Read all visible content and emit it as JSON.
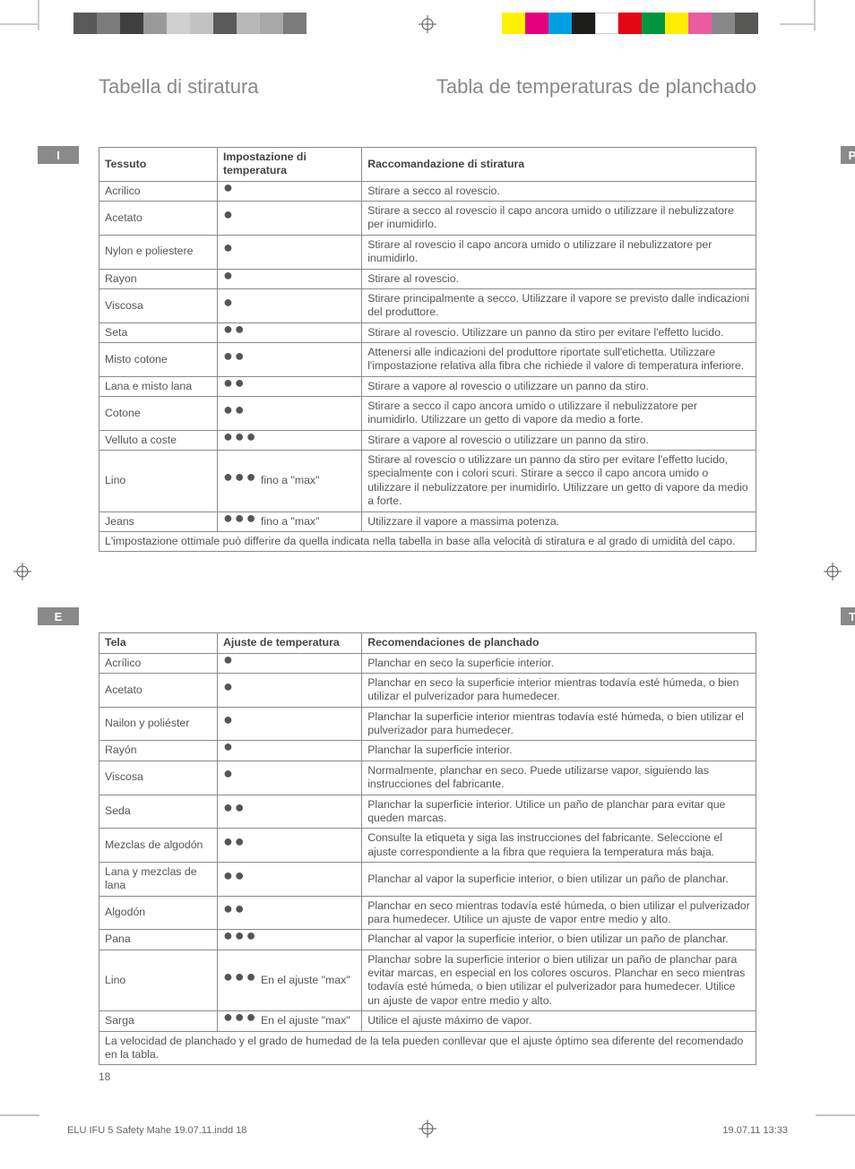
{
  "colorbars": {
    "left_colors": [
      "#595959",
      "#7b7b7b",
      "#3f3f3f",
      "#9a9a9a",
      "#d0d0d0",
      "#c2c2c2",
      "#595959",
      "#b8b8b8",
      "#a8a8a8",
      "#7b7b7b"
    ],
    "right_colors": [
      "#fff200",
      "#e5007e",
      "#009fe3",
      "#1d1d1b",
      "#ffffff",
      "#e30613",
      "#009640",
      "#ffed00",
      "#eb5ba2",
      "#878787",
      "#575756"
    ]
  },
  "titles": {
    "left": "Tabella di stiratura",
    "right": "Tabla de temperaturas de planchado"
  },
  "lang_tabs": {
    "it": "I",
    "es": "E"
  },
  "edge_tabs": {
    "top": "P",
    "bottom": "T"
  },
  "table_it": {
    "headers": [
      "Tessuto",
      "Impostazione di temperatura",
      "Raccomandazione di stiratura"
    ],
    "rows": [
      {
        "fabric": "Acrilico",
        "dots": 1,
        "suffix": "",
        "rec": "Stirare a secco al rovescio."
      },
      {
        "fabric": "Acetato",
        "dots": 1,
        "suffix": "",
        "rec": "Stirare a secco al rovescio il capo ancora umido o utilizzare il nebulizzatore per inumidirlo."
      },
      {
        "fabric": "Nylon e poliestere",
        "dots": 1,
        "suffix": "",
        "rec": "Stirare al rovescio il capo ancora umido o utilizzare il nebulizzatore per inumidirlo."
      },
      {
        "fabric": "Rayon",
        "dots": 1,
        "suffix": "",
        "rec": "Stirare al rovescio."
      },
      {
        "fabric": "Viscosa",
        "dots": 1,
        "suffix": "",
        "rec": "Stirare principalmente a secco. Utilizzare il vapore se previsto dalle indicazioni del produttore."
      },
      {
        "fabric": "Seta",
        "dots": 2,
        "suffix": "",
        "rec": "Stirare al rovescio. Utilizzare un panno da stiro per evitare l'effetto lucido."
      },
      {
        "fabric": "Misto cotone",
        "dots": 2,
        "suffix": "",
        "rec": "Attenersi alle indicazioni del produttore riportate sull'etichetta. Utilizzare l'impostazione relativa alla fibra che richiede il valore di temperatura inferiore."
      },
      {
        "fabric": "Lana e misto lana",
        "dots": 2,
        "suffix": "",
        "rec": "Stirare a vapore al rovescio o utilizzare un panno da stiro."
      },
      {
        "fabric": "Cotone",
        "dots": 2,
        "suffix": "",
        "rec": "Stirare a secco il capo ancora umido o utilizzare il nebulizzatore per inumidirlo. Utilizzare un getto di vapore da medio a forte."
      },
      {
        "fabric": "Velluto a coste",
        "dots": 3,
        "suffix": "",
        "rec": "Stirare a vapore al rovescio o utilizzare un panno da stiro."
      },
      {
        "fabric": "Lino",
        "dots": 3,
        "suffix": " fino a \"max\"",
        "rec": "Stirare al rovescio o utilizzare un panno da stiro per evitare l'effetto lucido, specialmente con i colori scuri. Stirare a secco il capo ancora umido o utilizzare il nebulizzatore per inumidirlo. Utilizzare un getto di vapore da medio a forte."
      },
      {
        "fabric": "Jeans",
        "dots": 3,
        "suffix": " fino a \"max\"",
        "rec": "Utilizzare il vapore a massima potenza."
      }
    ],
    "footer": "L'impostazione ottimale può differire da quella indicata nella tabella in base alla velocità di stiratura e al grado di umidità del capo."
  },
  "table_es": {
    "headers": [
      "Tela",
      "Ajuste de temperatura",
      "Recomendaciones de planchado"
    ],
    "rows": [
      {
        "fabric": "Acrílico",
        "dots": 1,
        "suffix": "",
        "rec": "Planchar en seco la superficie interior."
      },
      {
        "fabric": "Acetato",
        "dots": 1,
        "suffix": "",
        "rec": "Planchar en seco la superficie interior mientras todavía esté húmeda, o bien utilizar el pulverizador para humedecer."
      },
      {
        "fabric": "Nailon y poliéster",
        "dots": 1,
        "suffix": "",
        "rec": "Planchar la superficie interior mientras todavía esté húmeda, o bien utilizar el pulverizador para humedecer."
      },
      {
        "fabric": "Rayón",
        "dots": 1,
        "suffix": "",
        "rec": "Planchar la superficie interior."
      },
      {
        "fabric": "Viscosa",
        "dots": 1,
        "suffix": "",
        "rec": "Normalmente, planchar en seco. Puede utilizarse vapor, siguiendo las instrucciones del fabricante."
      },
      {
        "fabric": "Seda",
        "dots": 2,
        "suffix": "",
        "rec": "Planchar la superficie interior. Utilice un paño de planchar para evitar que queden marcas."
      },
      {
        "fabric": "Mezclas de algodón",
        "dots": 2,
        "suffix": "",
        "rec": "Consulte la etiqueta y siga las instrucciones del fabricante. Seleccione el ajuste correspondiente a la fibra que requiera la temperatura más baja."
      },
      {
        "fabric": "Lana y mezclas de lana",
        "dots": 2,
        "suffix": "",
        "rec": "Planchar al vapor la superficie interior, o bien utilizar un paño de planchar."
      },
      {
        "fabric": "Algodón",
        "dots": 2,
        "suffix": "",
        "rec": "Planchar en seco mientras todavía esté húmeda, o bien utilizar el pulverizador para humedecer. Utilice un ajuste de vapor entre medio y alto."
      },
      {
        "fabric": "Pana",
        "dots": 3,
        "suffix": "",
        "rec": "Planchar al vapor la superficie interior, o bien utilizar un paño de planchar."
      },
      {
        "fabric": "Lino",
        "dots": 3,
        "suffix": " En el ajuste \"max\"",
        "rec": "Planchar sobre la superficie interior o bien utilizar un paño de planchar para evitar marcas, en especial en los colores oscuros. Planchar en seco mientras todavía esté húmeda, o bien utilizar el pulverizador para humedecer. Utilice un ajuste de vapor entre medio y alto."
      },
      {
        "fabric": "Sarga",
        "dots": 3,
        "suffix": " En el ajuste \"max\"",
        "rec": "Utilice el ajuste máximo de vapor."
      }
    ],
    "footer": "La velocidad de planchado y el grado de humedad de la tela pueden conllevar que el ajuste óptimo sea diferente del recomendado en la tabla."
  },
  "page_number": "18",
  "footer_file": "ELU IFU 5 Safety Mahe 19.07.11.indd   18",
  "footer_date": "19.07.11   13:33"
}
